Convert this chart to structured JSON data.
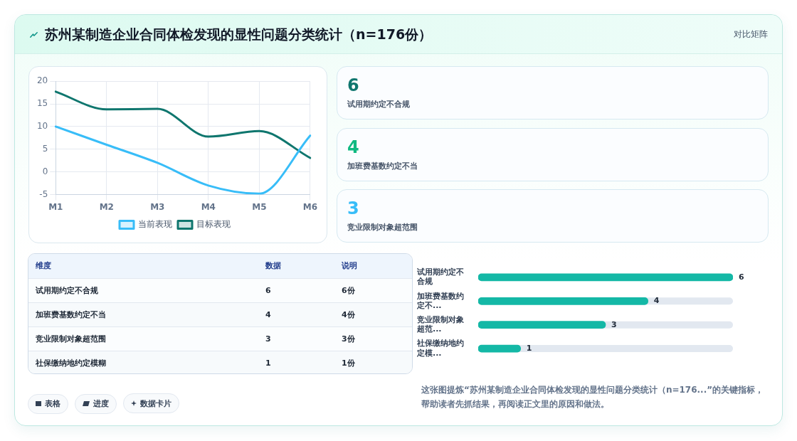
{
  "chart_data": [
    {
      "type": "other",
      "title": "苏州某制造企业合同体检发现的显性问题分类统计（n=176份）",
      "subtitle": "对比矩阵"
    },
    {
      "type": "line",
      "categories": [
        "M1",
        "M2",
        "M3",
        "M4",
        "M5",
        "M6"
      ],
      "series": [
        {
          "name": "当前表现",
          "color": "#38bdf8",
          "values": [
            10,
            6,
            2,
            -3,
            -4.8,
            8
          ]
        },
        {
          "name": "目标表现",
          "color": "#0f766e",
          "values": [
            17.7,
            13.8,
            13.9,
            7.8,
            9,
            3.1
          ]
        }
      ],
      "ylim": [
        -5,
        20
      ],
      "yticks": [
        -5,
        0,
        5,
        10,
        15,
        20
      ],
      "grid": true,
      "legend": "bottom"
    },
    {
      "type": "other",
      "categories": [
        "试用期约定不合规",
        "加班费基数约定不当",
        "竞业限制对象超范围"
      ],
      "values": [
        6,
        4,
        3
      ],
      "data_labels": true
    },
    {
      "type": "other",
      "categories": [
        "试用期约定不合规",
        "加班费基数约定不当",
        "竞业限制对象超范围",
        "社保缴纳地约定模糊"
      ],
      "values": [
        6,
        4,
        3,
        1
      ],
      "value_labels": [
        "6份",
        "4份",
        "3份",
        "1份"
      ],
      "annotations": [
        "维度",
        "数据",
        "说明"
      ]
    },
    {
      "type": "bar",
      "orientation": "horizontal",
      "categories": [
        "试用期约定不合规",
        "加班费基数约定不...",
        "竞业限制对象超范...",
        "社保缴纳地约定模..."
      ],
      "values": [
        6,
        4,
        3,
        1
      ],
      "value_labels": [
        "6",
        "4",
        "3",
        "1"
      ],
      "color": "#14b8a6",
      "tick_labels": "y",
      "annotations": [
        "这张图提炼“苏州某制造企业合同体检发现的显性问题分类统计（n=176...”的关键指标，帮助读者先抓结果，再阅读正文里的原因和做法。"
      ]
    },
    {
      "type": "other",
      "annotations": [
        "表格",
        "进度",
        "数据卡片"
      ]
    }
  ]
}
